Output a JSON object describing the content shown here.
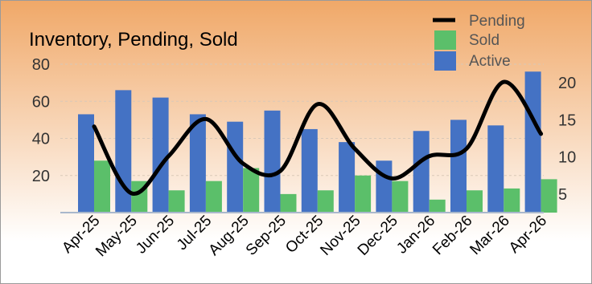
{
  "chart_data": {
    "type": "bar",
    "title": "Inventory, Pending, Sold",
    "categories": [
      "Apr-25",
      "May-25",
      "Jun-25",
      "Jul-25",
      "Aug-25",
      "Sep-25",
      "Oct-25",
      "Nov-25",
      "Dec-25",
      "Jan-26",
      "Feb-26",
      "Mar-26",
      "Apr-26"
    ],
    "series": [
      {
        "name": "Active",
        "type": "bar",
        "axis": "left",
        "color": "#4472C4",
        "values": [
          53,
          66,
          62,
          53,
          49,
          55,
          45,
          38,
          28,
          44,
          50,
          47,
          76
        ]
      },
      {
        "name": "Sold",
        "type": "bar",
        "axis": "left",
        "color": "#5BBF6A",
        "values": [
          28,
          17,
          12,
          17,
          24,
          10,
          12,
          20,
          17,
          7,
          12,
          13,
          18
        ]
      },
      {
        "name": "Pending",
        "type": "line",
        "axis": "right",
        "color": "#000000",
        "values": [
          14,
          5,
          10,
          15,
          9,
          8,
          17,
          11,
          7,
          10,
          11,
          20,
          13
        ]
      }
    ],
    "legend": [
      "Pending",
      "Sold",
      "Active"
    ],
    "legend_position": "top-right",
    "y_left": {
      "min": 0,
      "max": 80,
      "ticks": [
        "20",
        "40",
        "60",
        "80"
      ]
    },
    "y_right": {
      "min": 2.5,
      "max": 22.5,
      "ticks": [
        "5",
        "10",
        "15",
        "20"
      ]
    },
    "grid": true,
    "background_gradient": [
      "#F0A868",
      "#FFFFFF"
    ]
  }
}
